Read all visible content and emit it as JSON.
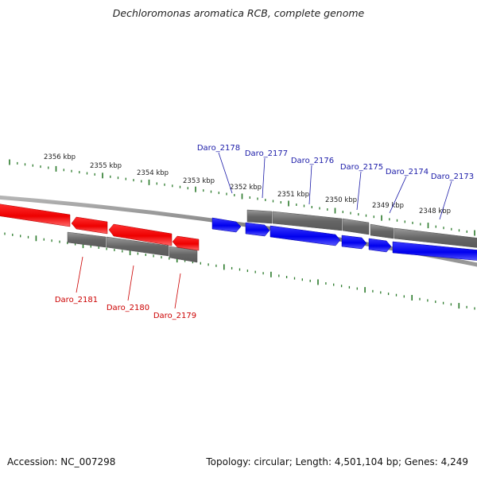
{
  "title": "Dechloromonas aromatica RCB, complete genome",
  "footer": {
    "accession": "Accession: NC_007298",
    "summary": "Topology: circular; Length: 4,501,104 bp; Genes: 4,249"
  },
  "colors": {
    "forward_gene": "#0000ee",
    "reverse_gene": "#ee0000",
    "cds_block": "#6b6b6b",
    "backbone": "#8a8a8a",
    "tick": "#2a7a2a",
    "forward_label": "#1a1aa8",
    "reverse_label": "#cc0000"
  },
  "scale_labels": [
    "2356 kbp",
    "2355 kbp",
    "2354 kbp",
    "2353 kbp",
    "2352 kbp",
    "2351 kbp",
    "2350 kbp",
    "2349 kbp",
    "2348 kbp"
  ],
  "forward_genes": [
    "Daro_2178",
    "Daro_2177",
    "Daro_2176",
    "Daro_2175",
    "Daro_2174",
    "Daro_2173"
  ],
  "reverse_genes": [
    "Daro_2181",
    "Daro_2180",
    "Daro_2179"
  ]
}
